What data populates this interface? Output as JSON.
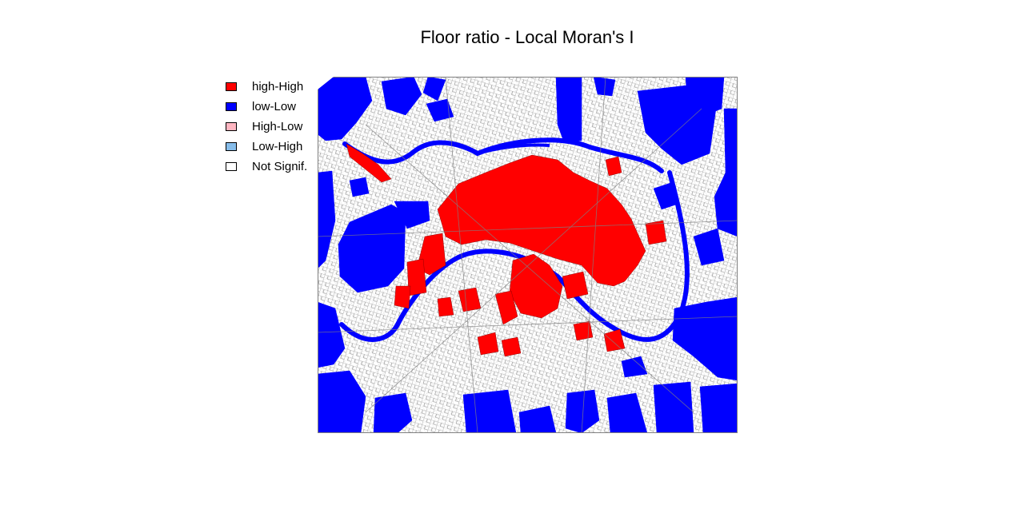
{
  "title": "Floor ratio - Local Moran's I",
  "legend": [
    {
      "label": "high-High",
      "color": "#ff0000"
    },
    {
      "label": "low-Low",
      "color": "#0000ff"
    },
    {
      "label": "High-Low",
      "color": "#ffb6c1"
    },
    {
      "label": "Low-High",
      "color": "#87bdea"
    },
    {
      "label": "Not Signif.",
      "color": "#ffffff"
    }
  ],
  "colors": {
    "background": "#ffffff",
    "parcel_border": "#808080",
    "river": "#0000ff"
  }
}
